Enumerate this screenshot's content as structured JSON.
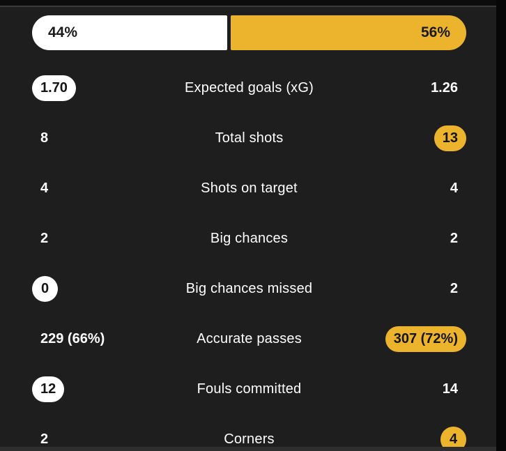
{
  "colors": {
    "background": "#1e1e1e",
    "home_highlight": "#ffffff",
    "away_highlight": "#ecb32d",
    "text": "#ffffff",
    "pill_text": "#141414",
    "top_strip": "#0c0c0c",
    "hairline": "#3a3a3a",
    "right_strip": "#070707",
    "bottom_strip": "#2e2e2e"
  },
  "possession": {
    "home_label": "44%",
    "away_label": "56%",
    "home_value": 44,
    "away_value": 56
  },
  "stats": [
    {
      "label": "Expected goals (xG)",
      "home": "1.70",
      "away": "1.26",
      "home_pill": "white",
      "away_pill": null
    },
    {
      "label": "Total shots",
      "home": "8",
      "away": "13",
      "home_pill": null,
      "away_pill": "yellow"
    },
    {
      "label": "Shots on target",
      "home": "4",
      "away": "4",
      "home_pill": null,
      "away_pill": null
    },
    {
      "label": "Big chances",
      "home": "2",
      "away": "2",
      "home_pill": null,
      "away_pill": null
    },
    {
      "label": "Big chances missed",
      "home": "0",
      "away": "2",
      "home_pill": "white",
      "away_pill": null
    },
    {
      "label": "Accurate passes",
      "home": "229 (66%)",
      "away": "307 (72%)",
      "home_pill": null,
      "away_pill": "yellow"
    },
    {
      "label": "Fouls committed",
      "home": "12",
      "away": "14",
      "home_pill": "white",
      "away_pill": null
    },
    {
      "label": "Corners",
      "home": "2",
      "away": "4",
      "home_pill": null,
      "away_pill": "yellow"
    }
  ]
}
